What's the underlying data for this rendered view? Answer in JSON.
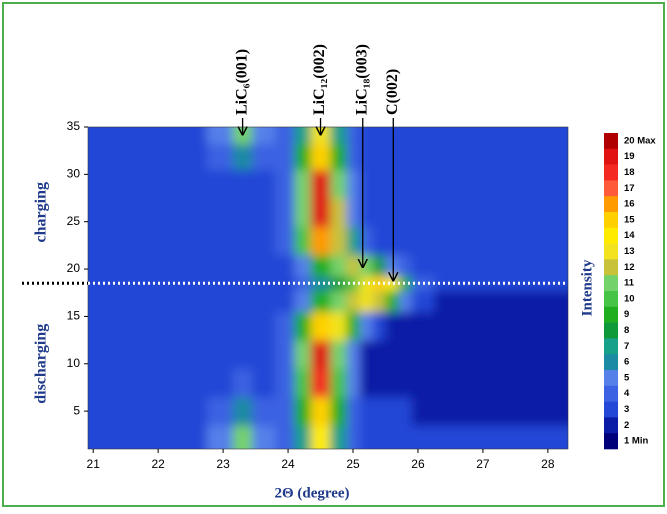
{
  "chart_data": {
    "type": "heatmap",
    "xlabel": "2Θ (degree)",
    "annotations": [
      {
        "text": "LiC₆(001)",
        "x": 23.3,
        "y": 34.2
      },
      {
        "text": "LiC₁₂(002)",
        "x": 24.5,
        "y": 34.2
      },
      {
        "text": "LiC₁₈(003)",
        "x": 25.15,
        "y": 20.2
      },
      {
        "text": "C(002)",
        "x": 25.62,
        "y": 18.8
      }
    ],
    "regions": [
      {
        "text": "charging",
        "y": 26
      },
      {
        "text": "discharging",
        "y": 10
      }
    ],
    "hline": 18.5,
    "xlim": [
      20.92,
      28.31
    ],
    "ylim": [
      1,
      35
    ],
    "xticks": [
      21,
      22,
      23,
      24,
      25,
      26,
      27,
      28
    ],
    "yticks": [
      5,
      10,
      15,
      20,
      25,
      30,
      35
    ],
    "x": [
      21,
      21.5,
      22,
      22.5,
      23,
      23.3,
      23.6,
      24,
      24.2,
      24.5,
      24.8,
      25,
      25.2,
      25.4,
      25.6,
      25.8,
      26,
      26.5,
      27,
      27.5,
      28
    ],
    "y": [
      2,
      5,
      8,
      11,
      14,
      17,
      18.5,
      20,
      23,
      26,
      29,
      32,
      34.5
    ],
    "z": [
      [
        3,
        3,
        3,
        3,
        5,
        11,
        5,
        4,
        7,
        14,
        7,
        4,
        3,
        3,
        3,
        3,
        3,
        3,
        3,
        3,
        3
      ],
      [
        3,
        3,
        3,
        3,
        4,
        6,
        4,
        4,
        9,
        15,
        9,
        4,
        3,
        3,
        3,
        3,
        2,
        2,
        2,
        2,
        2
      ],
      [
        3,
        3,
        3,
        3,
        3,
        4,
        3,
        4,
        10,
        18,
        10,
        5,
        2,
        2,
        2,
        2,
        2,
        2,
        2,
        2,
        2
      ],
      [
        3,
        3,
        3,
        3,
        3,
        3,
        3,
        4,
        11,
        19,
        11,
        5,
        2,
        2,
        2,
        2,
        2,
        2,
        2,
        2,
        2
      ],
      [
        3,
        3,
        3,
        3,
        3,
        3,
        3,
        4,
        9,
        15,
        13,
        9,
        5,
        3,
        2,
        2,
        2,
        2,
        2,
        2,
        2
      ],
      [
        3,
        3,
        3,
        3,
        3,
        3,
        3,
        3,
        5,
        9,
        11,
        12,
        13,
        12,
        9,
        5,
        3,
        2,
        2,
        2,
        2
      ],
      [
        3,
        3,
        3,
        3,
        3,
        3,
        3,
        3,
        4,
        6,
        8,
        10,
        13,
        15,
        14,
        9,
        4,
        3,
        3,
        3,
        3
      ],
      [
        3,
        3,
        3,
        3,
        3,
        3,
        3,
        3,
        5,
        9,
        11,
        12,
        11,
        8,
        5,
        4,
        3,
        3,
        3,
        3,
        3
      ],
      [
        3,
        3,
        3,
        3,
        3,
        3,
        3,
        4,
        10,
        16,
        12,
        7,
        4,
        3,
        3,
        3,
        3,
        3,
        3,
        3,
        3
      ],
      [
        3,
        3,
        3,
        3,
        3,
        3,
        3,
        4,
        11,
        19,
        12,
        5,
        3,
        3,
        3,
        3,
        3,
        3,
        3,
        3,
        3
      ],
      [
        3,
        3,
        3,
        3,
        3,
        3,
        3,
        4,
        11,
        19,
        11,
        5,
        3,
        3,
        3,
        3,
        3,
        3,
        3,
        3,
        3
      ],
      [
        3,
        3,
        3,
        3,
        4,
        6,
        4,
        4,
        9,
        15,
        9,
        4,
        3,
        3,
        3,
        3,
        3,
        3,
        3,
        3,
        3
      ],
      [
        3,
        3,
        3,
        3,
        5,
        11,
        5,
        4,
        7,
        13,
        7,
        4,
        3,
        3,
        3,
        3,
        3,
        3,
        3,
        3,
        3
      ]
    ],
    "colorbar": {
      "label": "Intensity",
      "ticks": [
        {
          "value": 20,
          "label": "20 Max"
        },
        19,
        18,
        17,
        16,
        15,
        14,
        13,
        12,
        11,
        10,
        9,
        8,
        7,
        6,
        5,
        4,
        3,
        2,
        {
          "value": 1,
          "label": "1 Min"
        }
      ],
      "colors": [
        "#00007a",
        "#0b1ca6",
        "#2347d6",
        "#3a62e2",
        "#5580ea",
        "#1b8aa3",
        "#17a08a",
        "#0f9a3a",
        "#1fae1f",
        "#46c446",
        "#74d26a",
        "#c8c23a",
        "#f2e31e",
        "#ffeb00",
        "#ffd000",
        "#ff9a00",
        "#ff5a3a",
        "#f42a22",
        "#e01212",
        "#b00000"
      ]
    }
  }
}
